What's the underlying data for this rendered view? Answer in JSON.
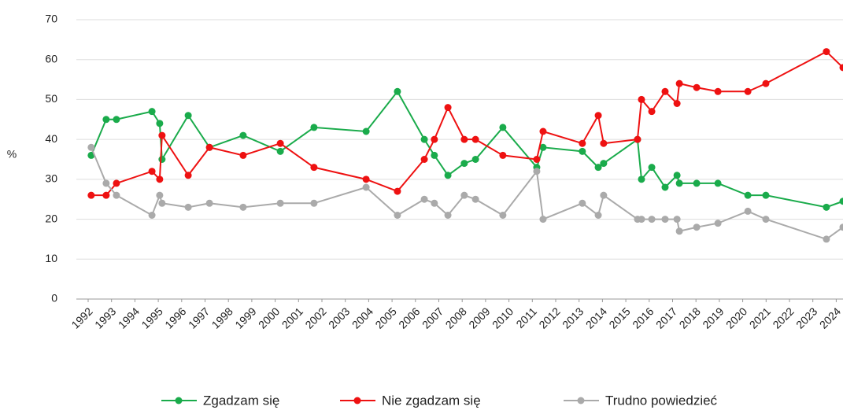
{
  "chart_data": {
    "type": "line",
    "y_label": "%",
    "x": [
      1992.13,
      1992.77,
      1993.21,
      1994.73,
      1995.06,
      1995.16,
      1996.28,
      1997.19,
      1998.63,
      2000.22,
      2001.66,
      2003.89,
      2005.23,
      2006.38,
      2006.81,
      2007.39,
      2008.09,
      2008.57,
      2009.74,
      2011.19,
      2011.46,
      2013.14,
      2013.82,
      2014.05,
      2015.5,
      2015.67,
      2016.11,
      2016.68,
      2017.19,
      2017.29,
      2018.03,
      2018.94,
      2020.22,
      2020.99,
      2023.58,
      2024.29
    ],
    "series": [
      {
        "name": "Zgadzam się",
        "color": "#1aab4b",
        "values": [
          36,
          45,
          45,
          47,
          44,
          35,
          46,
          38,
          41,
          37,
          43,
          42,
          52,
          40,
          36,
          31,
          34,
          35,
          43,
          33,
          38,
          37,
          33,
          34,
          40,
          30,
          33,
          28,
          31,
          29,
          29,
          29,
          26,
          26,
          23,
          24.5
        ]
      },
      {
        "name": "Nie zgadzam się",
        "color": "#ee1111",
        "values": [
          26,
          26,
          29,
          32,
          30,
          41,
          31,
          38,
          36,
          39,
          33,
          30,
          27,
          35,
          40,
          48,
          40,
          40,
          36,
          35,
          42,
          39,
          46,
          39,
          40,
          50,
          47,
          52,
          49,
          54,
          53,
          52,
          52,
          54,
          62,
          58
        ]
      },
      {
        "name": "Trudno powiedzieć",
        "color": "#aaaaaa",
        "values": [
          38,
          29,
          26,
          21,
          26,
          24,
          23,
          24,
          23,
          24,
          24,
          28,
          21,
          25,
          24,
          21,
          26,
          25,
          21,
          32,
          20,
          24,
          21,
          26,
          20,
          20,
          20,
          20,
          20,
          17,
          18,
          19,
          22,
          20,
          15,
          18
        ]
      }
    ],
    "xlim": [
      1992,
      2024.29
    ],
    "xticks": [
      1992,
      1993,
      1994,
      1995,
      1996,
      1997,
      1998,
      1999,
      2000,
      2001,
      2002,
      2003,
      2004,
      2005,
      2006,
      2007,
      2008,
      2009,
      2010,
      2011,
      2012,
      2013,
      2014,
      2015,
      2016,
      2017,
      2018,
      2019,
      2020,
      2021,
      2022,
      2023,
      2024
    ],
    "ylim": [
      0,
      70
    ],
    "yticks": [
      0,
      10,
      20,
      30,
      40,
      50,
      60,
      70
    ],
    "grid": true,
    "legend": "bottom"
  }
}
